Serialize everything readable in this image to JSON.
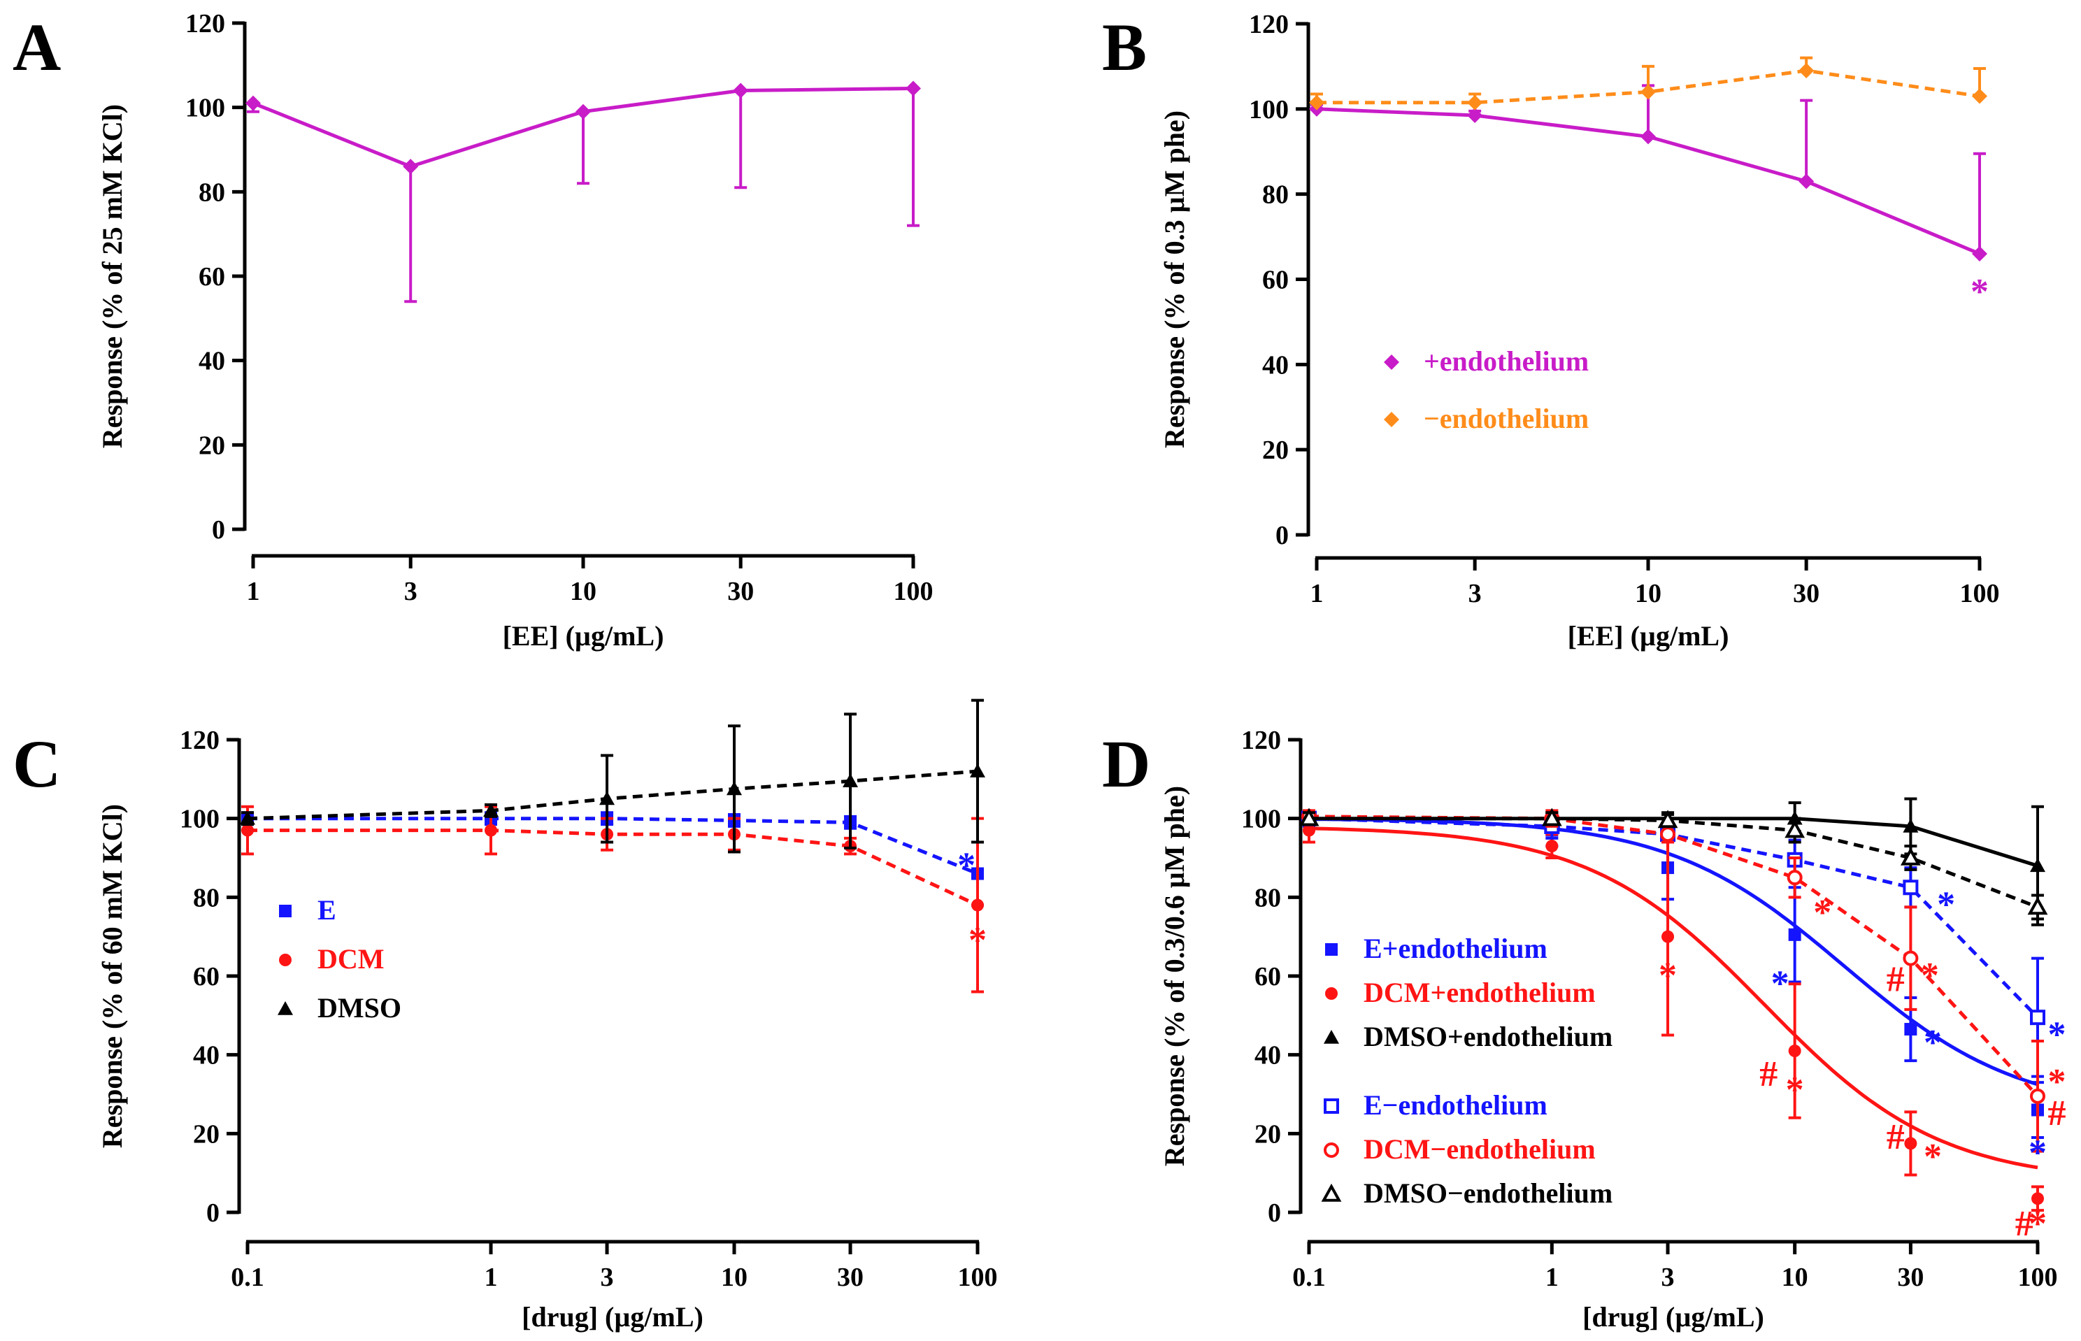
{
  "colors": {
    "magenta": "#c81cc8",
    "orange": "#ff8c1a",
    "blue": "#1414ff",
    "red": "#ff1414",
    "black": "#000000"
  },
  "chart_data": [
    {
      "panel": "A",
      "type": "line",
      "xlabel": "[EE] (µg/mL)",
      "ylabel": "Response (% of 25 mM KCl)",
      "xscale": "log",
      "xlim": [
        1,
        100
      ],
      "ylim": [
        0,
        120
      ],
      "xticks": [
        1,
        3,
        10,
        30,
        100
      ],
      "xtick_labels": [
        "1",
        "3",
        "10",
        "30",
        "100"
      ],
      "yticks": [
        0,
        20,
        40,
        60,
        80,
        100,
        120
      ],
      "ytick_labels": [
        "0",
        "20",
        "40",
        "60",
        "80",
        "100",
        "120"
      ],
      "series": [
        {
          "name": "EE",
          "color": "#c81cc8",
          "marker": "diamond",
          "filled": true,
          "line": "solid",
          "err_dir": "down",
          "x": [
            1,
            3,
            10,
            30,
            100
          ],
          "y": [
            101,
            86,
            99,
            104,
            104.5
          ],
          "err": [
            2,
            32,
            17,
            23,
            32.5
          ]
        }
      ],
      "annotations": []
    },
    {
      "panel": "B",
      "type": "line",
      "xlabel": "[EE] (µg/mL)",
      "ylabel": "Response (% of 0.3 µM phe)",
      "xscale": "log",
      "xlim": [
        1,
        100
      ],
      "ylim": [
        0,
        120
      ],
      "xticks": [
        1,
        3,
        10,
        30,
        100
      ],
      "xtick_labels": [
        "1",
        "3",
        "10",
        "30",
        "100"
      ],
      "yticks": [
        0,
        20,
        40,
        60,
        80,
        100,
        120
      ],
      "ytick_labels": [
        "0",
        "20",
        "40",
        "60",
        "80",
        "100",
        "120"
      ],
      "series": [
        {
          "name": "+endothelium",
          "color": "#c81cc8",
          "marker": "diamond",
          "filled": true,
          "line": "solid",
          "err_dir": "up",
          "x": [
            1,
            3,
            10,
            30,
            100
          ],
          "y": [
            100,
            98.5,
            93.5,
            83,
            66
          ],
          "err": [
            1,
            1,
            12,
            19,
            23.5
          ]
        },
        {
          "name": "−endothelium",
          "color": "#ff8c1a",
          "marker": "diamond",
          "filled": true,
          "line": "dashed",
          "err_dir": "up",
          "x": [
            1,
            3,
            10,
            30,
            100
          ],
          "y": [
            101.5,
            101.5,
            104,
            109,
            103
          ],
          "err": [
            2,
            2,
            6,
            3,
            6.5
          ]
        }
      ],
      "annotations": [
        {
          "text": "*",
          "x": 100,
          "y": 57,
          "color": "#c81cc8"
        }
      ]
    },
    {
      "panel": "C",
      "type": "line",
      "xlabel": "[drug] (µg/mL)",
      "ylabel": "Response (% of 60 mM KCl)",
      "xscale": "log",
      "xlim": [
        0.1,
        100
      ],
      "ylim": [
        0,
        120
      ],
      "xticks": [
        0.1,
        1,
        3,
        10,
        30,
        100
      ],
      "xtick_labels": [
        "0.1",
        "1",
        "3",
        "10",
        "30",
        "100"
      ],
      "yticks": [
        0,
        20,
        40,
        60,
        80,
        100,
        120
      ],
      "ytick_labels": [
        "0",
        "20",
        "40",
        "60",
        "80",
        "100",
        "120"
      ],
      "series": [
        {
          "name": "E",
          "color": "#1414ff",
          "marker": "square",
          "filled": true,
          "line": "dashed",
          "err_dir": "both",
          "x": [
            0.1,
            1,
            3,
            10,
            30,
            100
          ],
          "y": [
            100,
            100,
            100,
            99.5,
            99,
            86
          ],
          "err": [
            1.5,
            1.5,
            1.5,
            1.5,
            1.5,
            8
          ]
        },
        {
          "name": "DCM",
          "color": "#ff1414",
          "marker": "circle",
          "filled": true,
          "line": "dashed",
          "err_dir": "both",
          "x": [
            0.1,
            1,
            3,
            10,
            30,
            100
          ],
          "y": [
            97,
            97,
            96,
            96,
            93,
            78
          ],
          "err": [
            6,
            6,
            4,
            4,
            2,
            22
          ]
        },
        {
          "name": "DMSO",
          "color": "#000000",
          "marker": "triangle",
          "filled": true,
          "line": "dashed",
          "err_dir": "both",
          "x": [
            0.1,
            1,
            3,
            10,
            30,
            100
          ],
          "y": [
            100,
            102,
            105,
            107.5,
            109.5,
            112
          ],
          "err": [
            1.5,
            1.5,
            11,
            16,
            17,
            18
          ]
        }
      ],
      "annotations": [
        {
          "text": "*",
          "x": 90,
          "y": 88,
          "color": "#1414ff"
        },
        {
          "text": "*",
          "x": 100,
          "y": 69,
          "color": "#ff1414"
        }
      ]
    },
    {
      "panel": "D",
      "type": "line",
      "xlabel": "[drug] (µg/mL)",
      "ylabel": "Response (% of 0.3/0.6 µM  phe)",
      "xscale": "log",
      "xlim": [
        0.1,
        100
      ],
      "ylim": [
        0,
        120
      ],
      "xticks": [
        0.1,
        1,
        3,
        10,
        30,
        100
      ],
      "xtick_labels": [
        "0.1",
        "1",
        "3",
        "10",
        "30",
        "100"
      ],
      "yticks": [
        0,
        20,
        40,
        60,
        80,
        100,
        120
      ],
      "ytick_labels": [
        "0",
        "20",
        "40",
        "60",
        "80",
        "100",
        "120"
      ],
      "series": [
        {
          "name": "E+endothelium",
          "color": "#1414ff",
          "marker": "square",
          "filled": true,
          "line": "solid",
          "fit": true,
          "err_dir": "both",
          "x": [
            0.1,
            1,
            3,
            10,
            30,
            100
          ],
          "y": [
            99.5,
            97,
            87.5,
            70.5,
            46.5,
            26
          ],
          "err": [
            1.5,
            4,
            8,
            12,
            8,
            7
          ],
          "curve": {
            "bottom": 25,
            "top": 100,
            "ec50": 16,
            "hill": 1.2
          }
        },
        {
          "name": "DCM+endothelium",
          "color": "#ff1414",
          "marker": "circle",
          "filled": true,
          "line": "solid",
          "fit": true,
          "err_dir": "both",
          "x": [
            0.1,
            1,
            3,
            10,
            30,
            100
          ],
          "y": [
            97,
            93,
            70,
            41,
            17.5,
            3.5
          ],
          "err": [
            3,
            3,
            25,
            17,
            8,
            3
          ],
          "curve": {
            "bottom": 7.5,
            "top": 98,
            "ec50": 7.5,
            "hill": 1.2
          }
        },
        {
          "name": "DMSO+endothelium",
          "color": "#000000",
          "marker": "triangle",
          "filled": true,
          "line": "solid",
          "err_dir": "both",
          "x": [
            0.1,
            1,
            3,
            10,
            30,
            100
          ],
          "y": [
            100,
            100,
            100,
            100,
            98,
            88
          ],
          "err": [
            1.5,
            1.5,
            1.5,
            4,
            7,
            15
          ]
        },
        {
          "name": "E−endothelium",
          "color": "#1414ff",
          "marker": "square",
          "filled": false,
          "line": "dashed",
          "err_dir": "both",
          "x": [
            0.1,
            1,
            3,
            10,
            30,
            100
          ],
          "y": [
            100,
            98,
            96,
            89.5,
            82.5,
            49.5
          ],
          "err": [
            1.5,
            3,
            2,
            5,
            5,
            15
          ]
        },
        {
          "name": "DCM−endothelium",
          "color": "#ff1414",
          "marker": "circle",
          "filled": false,
          "line": "dashed",
          "err_dir": "both",
          "x": [
            0.1,
            1,
            3,
            10,
            30,
            100
          ],
          "y": [
            100.5,
            100,
            96,
            85,
            64.5,
            29.5
          ],
          "err": [
            1.5,
            2,
            2,
            5,
            13,
            14
          ]
        },
        {
          "name": "DMSO−endothelium",
          "color": "#000000",
          "marker": "triangle",
          "filled": false,
          "line": "dashed",
          "err_dir": "both",
          "x": [
            0.1,
            1,
            3,
            10,
            30,
            100
          ],
          "y": [
            100,
            100,
            99.5,
            97,
            90,
            77.5
          ],
          "err": [
            1.5,
            1.5,
            1.5,
            3,
            3,
            3
          ]
        }
      ],
      "annotations": [
        {
          "text": "*",
          "x": 3,
          "y": 60,
          "color": "#ff1414"
        },
        {
          "text": "*",
          "x": 8.7,
          "y": 58,
          "color": "#1414ff"
        },
        {
          "text": "*",
          "x": 13,
          "y": 76,
          "color": "#ff1414"
        },
        {
          "text": "#",
          "x": 7.8,
          "y": 35,
          "color": "#ff1414"
        },
        {
          "text": "*",
          "x": 10,
          "y": 31,
          "color": "#ff1414"
        },
        {
          "text": "#",
          "x": 26,
          "y": 59,
          "color": "#ff1414"
        },
        {
          "text": "*",
          "x": 36,
          "y": 60,
          "color": "#ff1414"
        },
        {
          "text": "*",
          "x": 37,
          "y": 43,
          "color": "#1414ff"
        },
        {
          "text": "#",
          "x": 26,
          "y": 19,
          "color": "#ff1414"
        },
        {
          "text": "*",
          "x": 37,
          "y": 14,
          "color": "#ff1414"
        },
        {
          "text": "*",
          "x": 42,
          "y": 78,
          "color": "#1414ff"
        },
        {
          "text": "*",
          "x": 120,
          "y": 45,
          "color": "#1414ff"
        },
        {
          "text": "*",
          "x": 120,
          "y": 33,
          "color": "#ff1414"
        },
        {
          "text": "#",
          "x": 120,
          "y": 25,
          "color": "#ff1414"
        },
        {
          "text": "*",
          "x": 100,
          "y": 15,
          "color": "#1414ff"
        },
        {
          "text": "#",
          "x": 88,
          "y": -3,
          "color": "#ff1414"
        },
        {
          "text": "*",
          "x": 100,
          "y": -3,
          "color": "#ff1414"
        }
      ]
    }
  ]
}
